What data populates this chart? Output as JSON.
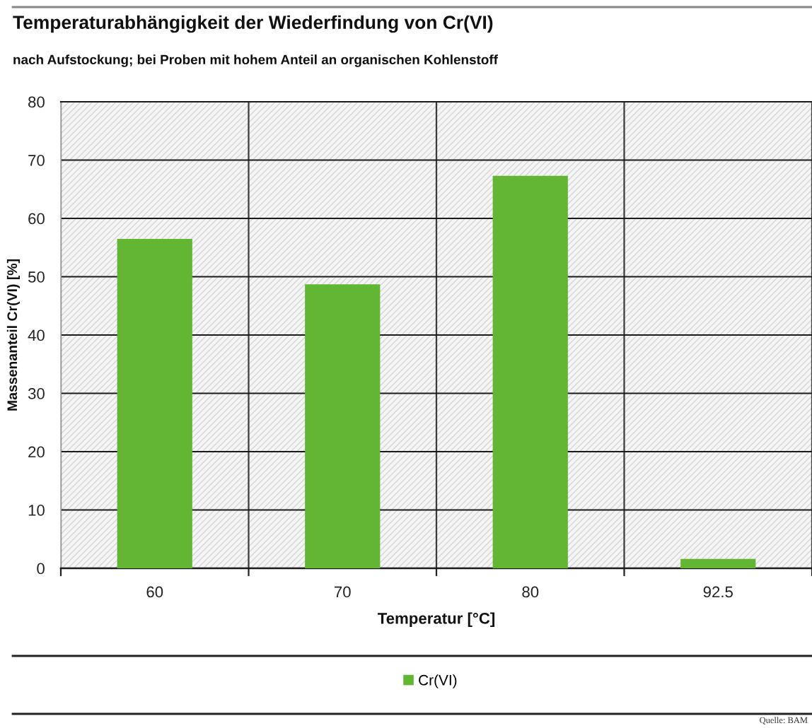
{
  "chart_data": {
    "type": "bar",
    "title": "Temperaturabhängigkeit der Wiederfindung von Cr(VI)",
    "subtitle": "nach Aufstockung; bei Proben mit hohem Anteil an organischen Kohlenstoff",
    "xlabel": "Temperatur [°C]",
    "ylabel": "Massenanteil Cr(VI) [%]",
    "categories": [
      "60",
      "70",
      "80",
      "92.5"
    ],
    "series": [
      {
        "name": "Cr(VI)",
        "color": "#63b633",
        "values": [
          56.5,
          48.7,
          67.3,
          1.6
        ]
      }
    ],
    "ylim": [
      0,
      80
    ],
    "yticks": [
      0,
      10,
      20,
      30,
      40,
      50,
      60,
      70,
      80
    ],
    "grid": true,
    "legend": "bottom",
    "annotations": [
      "Quelle: BAM"
    ]
  }
}
